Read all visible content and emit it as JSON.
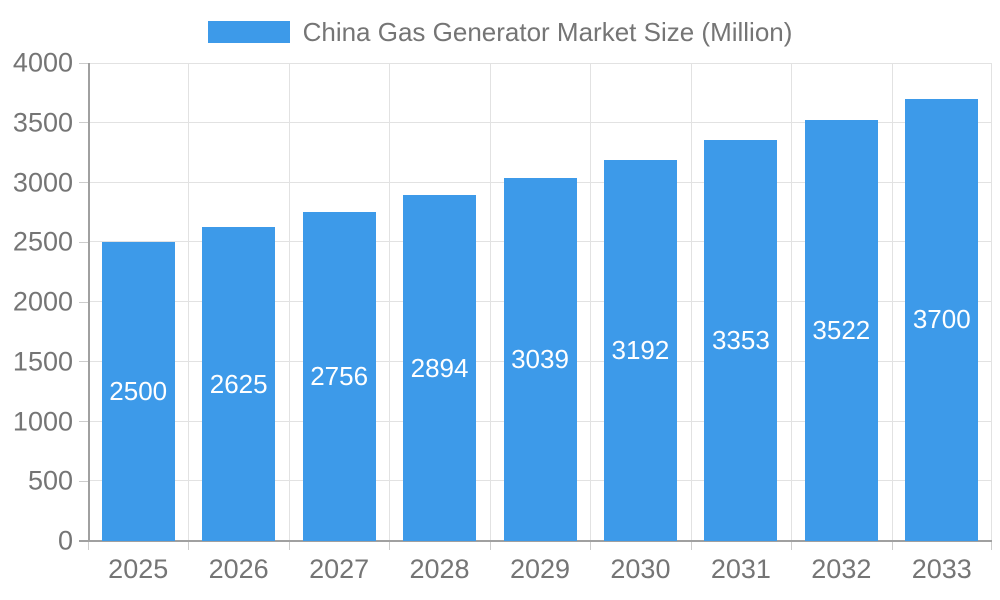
{
  "legend": {
    "items": [
      {
        "label": "China Gas Generator Market Size (Million)",
        "color": "#3D9AE9"
      }
    ],
    "position": "top"
  },
  "chart_data": {
    "type": "bar",
    "title": "China Gas Generator Market Size (Million)",
    "categories": [
      "2025",
      "2026",
      "2027",
      "2028",
      "2029",
      "2030",
      "2031",
      "2032",
      "2033"
    ],
    "values": [
      2500,
      2625,
      2756,
      2894,
      3039,
      3192,
      3353,
      3522,
      3700
    ],
    "xlabel": "",
    "ylabel": "",
    "ylim": [
      0,
      4000
    ],
    "yticks": [
      0,
      500,
      1000,
      1500,
      2000,
      2500,
      3000,
      3500,
      4000
    ],
    "grid": true,
    "legend_position": "top",
    "value_labels": "inside-center",
    "colors": {
      "bar": "#3D9AE9",
      "bar_label": "#FFFFFF",
      "axis_text": "#757575",
      "grid_line": "#E2E2E2",
      "tick_line": "#CCCCCC",
      "axis_line": "#A0A0A0",
      "background": "#FFFFFF"
    }
  }
}
